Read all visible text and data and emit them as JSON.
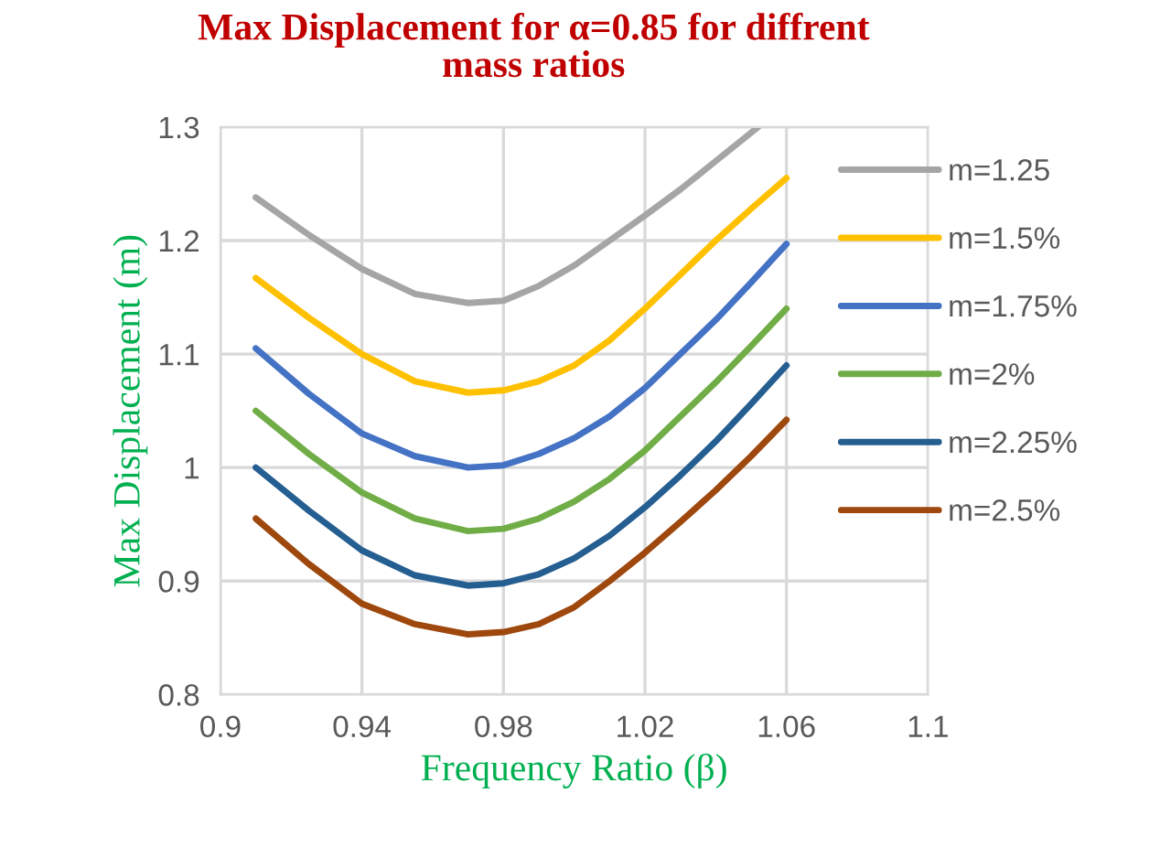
{
  "chart_data": {
    "type": "line",
    "title": "Max Displacement for α=0.85 for diffrent\nmass ratios",
    "xlabel": "Frequency Ratio (β)",
    "ylabel": "Max Displacement (m)",
    "xlim": [
      0.9,
      1.1
    ],
    "xticks": [
      0.9,
      0.94,
      0.98,
      1.02,
      1.06,
      1.1
    ],
    "ylim": [
      0.8,
      1.3
    ],
    "yticks": [
      0.8,
      0.9,
      1,
      1.1,
      1.2,
      1.3
    ],
    "grid": true,
    "legend": "right",
    "marker": "none",
    "line_style": "solid",
    "series": [
      {
        "name": "m=1.25",
        "color": "#a5a5a5",
        "x": [
          0.91,
          0.925,
          0.94,
          0.955,
          0.97,
          0.98,
          0.99,
          1.0,
          1.01,
          1.02,
          1.03,
          1.04,
          1.052
        ],
        "values": [
          1.238,
          1.205,
          1.175,
          1.153,
          1.145,
          1.147,
          1.16,
          1.178,
          1.2,
          1.222,
          1.245,
          1.27,
          1.3
        ]
      },
      {
        "name": "m=1.5%",
        "color": "#ffc000",
        "x": [
          0.91,
          0.925,
          0.94,
          0.955,
          0.97,
          0.98,
          0.99,
          1.0,
          1.01,
          1.02,
          1.03,
          1.04,
          1.05,
          1.06
        ],
        "values": [
          1.167,
          1.132,
          1.1,
          1.076,
          1.066,
          1.068,
          1.076,
          1.09,
          1.112,
          1.14,
          1.17,
          1.2,
          1.228,
          1.255
        ]
      },
      {
        "name": "m=1.75%",
        "color": "#4472c4",
        "x": [
          0.91,
          0.925,
          0.94,
          0.955,
          0.97,
          0.98,
          0.99,
          1.0,
          1.01,
          1.02,
          1.03,
          1.04,
          1.05,
          1.06
        ],
        "values": [
          1.105,
          1.065,
          1.03,
          1.01,
          1.0,
          1.002,
          1.012,
          1.026,
          1.045,
          1.07,
          1.1,
          1.13,
          1.163,
          1.197
        ]
      },
      {
        "name": "m=2%",
        "color": "#70ad47",
        "x": [
          0.91,
          0.925,
          0.94,
          0.955,
          0.97,
          0.98,
          0.99,
          1.0,
          1.01,
          1.02,
          1.03,
          1.04,
          1.05,
          1.06
        ],
        "values": [
          1.05,
          1.012,
          0.978,
          0.955,
          0.944,
          0.946,
          0.955,
          0.97,
          0.99,
          1.015,
          1.045,
          1.075,
          1.107,
          1.14
        ]
      },
      {
        "name": "m=2.25%",
        "color": "#255e91",
        "x": [
          0.91,
          0.925,
          0.94,
          0.955,
          0.97,
          0.98,
          0.99,
          1.0,
          1.01,
          1.02,
          1.03,
          1.04,
          1.05,
          1.06
        ],
        "values": [
          1.0,
          0.962,
          0.927,
          0.905,
          0.896,
          0.898,
          0.906,
          0.92,
          0.94,
          0.965,
          0.993,
          1.023,
          1.056,
          1.09
        ]
      },
      {
        "name": "m=2.5%",
        "color": "#9e480e",
        "x": [
          0.91,
          0.925,
          0.94,
          0.955,
          0.97,
          0.98,
          0.99,
          1.0,
          1.01,
          1.02,
          1.03,
          1.04,
          1.05,
          1.06
        ],
        "values": [
          0.955,
          0.915,
          0.88,
          0.862,
          0.853,
          0.855,
          0.862,
          0.877,
          0.9,
          0.925,
          0.952,
          0.98,
          1.01,
          1.042
        ]
      }
    ]
  }
}
